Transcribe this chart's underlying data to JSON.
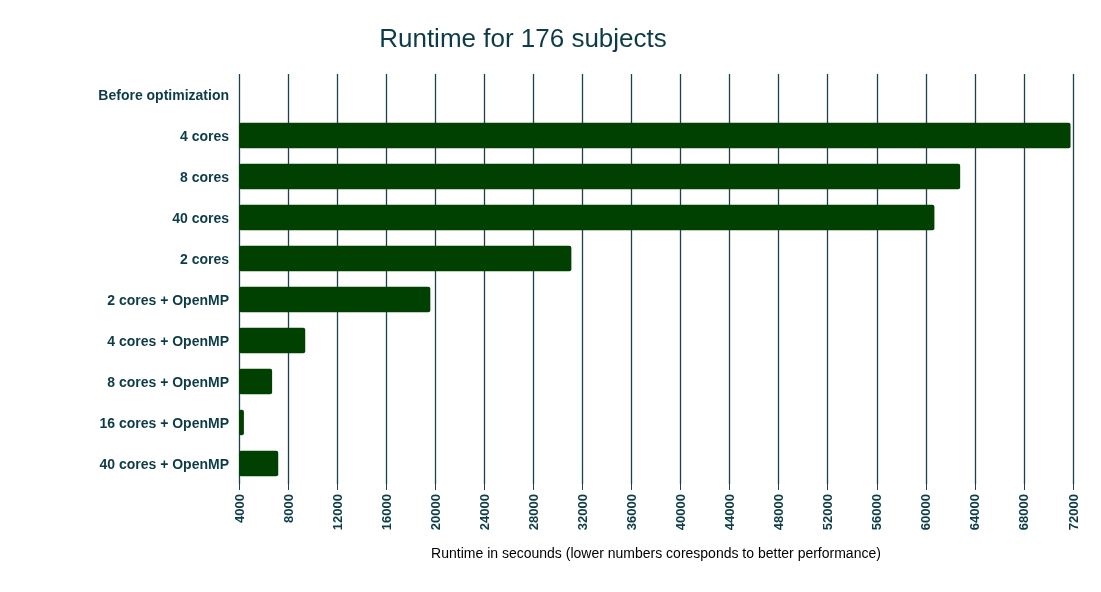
{
  "chart_data": {
    "type": "bar",
    "orientation": "horizontal",
    "title": "Runtime for 176 subjects",
    "xlabel": "Runtime in secounds (lower numbers coresponds to better performance)",
    "categories": [
      "Before optimization",
      "4 cores",
      "8 cores",
      "40 cores",
      "2 cores",
      "2 cores + OpenMP",
      "4 cores + OpenMP",
      "8 cores + OpenMP",
      "16 cores + OpenMP",
      "40 cores + OpenMP"
    ],
    "values": [
      null,
      71800,
      62800,
      60700,
      31100,
      19600,
      9400,
      6700,
      4400,
      7200
    ],
    "color": "#004000",
    "xlim": [
      4000,
      72000
    ],
    "xticks": [
      4000,
      8000,
      12000,
      16000,
      20000,
      24000,
      28000,
      32000,
      36000,
      40000,
      44000,
      48000,
      52000,
      56000,
      60000,
      64000,
      68000,
      72000
    ],
    "grid": "x"
  }
}
